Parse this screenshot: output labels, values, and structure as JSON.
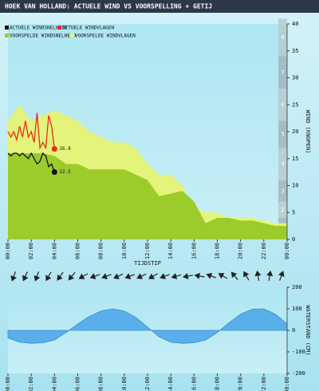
{
  "title": "Hoek van Holland: actuele wind vs voorspelling + getij",
  "chart_data": [
    {
      "type": "wind",
      "xlabel": "tijdstip",
      "ylabel": "wind (knopen)",
      "xlim": [
        0,
        24
      ],
      "xticks": [
        {
          "value": 0,
          "label": "00:00"
        },
        {
          "value": 2,
          "label": "02:00"
        },
        {
          "value": 4,
          "label": "04:00"
        },
        {
          "value": 6,
          "label": "06:00"
        },
        {
          "value": 8,
          "label": "08:00"
        },
        {
          "value": 10,
          "label": "10:00"
        },
        {
          "value": 12,
          "label": "12:00"
        },
        {
          "value": 14,
          "label": "14:00"
        },
        {
          "value": 16,
          "label": "16:00"
        },
        {
          "value": 18,
          "label": "18:00"
        },
        {
          "value": 20,
          "label": "20:00"
        },
        {
          "value": 22,
          "label": "22:00"
        },
        {
          "value": 24,
          "label": "00:00"
        }
      ],
      "ylim": [
        0,
        40
      ],
      "yticks": [
        0,
        5,
        10,
        15,
        20,
        25,
        30,
        35,
        40
      ],
      "beaufort": {
        "labels": [
          1,
          2,
          3,
          4,
          5,
          6,
          7,
          8
        ],
        "bounds": [
          1,
          4,
          7,
          11,
          17,
          22,
          28,
          34,
          41
        ]
      },
      "series": [
        {
          "name": "Voorspelde windvlagen",
          "color": "#e4f47a",
          "style": "area",
          "x": [
            0,
            1,
            2,
            3,
            4,
            5,
            6,
            7,
            8,
            9,
            10,
            11,
            12,
            13,
            14,
            15,
            16,
            17,
            18,
            19,
            20,
            21,
            22,
            23,
            24
          ],
          "values": [
            22,
            25,
            22,
            23,
            24,
            23,
            22,
            20,
            19,
            18,
            18,
            17,
            14,
            12,
            12,
            10,
            6,
            5,
            5,
            4,
            4,
            4,
            3.5,
            3,
            3
          ]
        },
        {
          "name": "Voorspelde windsnelheid",
          "color": "#9ccc2c",
          "style": "area",
          "x": [
            0,
            1,
            2,
            3,
            4,
            5,
            6,
            7,
            8,
            9,
            10,
            11,
            12,
            13,
            14,
            15,
            16,
            17,
            18,
            19,
            20,
            21,
            22,
            23,
            24
          ],
          "values": [
            16,
            16,
            16,
            16,
            15.5,
            14,
            14,
            13,
            13,
            13,
            13,
            12,
            11,
            8,
            8.5,
            9,
            7,
            3,
            4,
            4,
            3.5,
            3.5,
            3,
            2.5,
            2.5
          ]
        },
        {
          "name": "Actuele windvlagen",
          "color": "#ee2a1c",
          "style": "line",
          "x": [
            0,
            0.25,
            0.5,
            0.75,
            1,
            1.25,
            1.5,
            1.75,
            2,
            2.25,
            2.5,
            2.75,
            3,
            3.25,
            3.5,
            3.75,
            4
          ],
          "values": [
            20,
            19,
            20,
            18.5,
            21,
            19,
            22,
            19,
            20,
            18,
            23.5,
            17,
            18,
            17,
            23,
            21,
            16.8
          ]
        },
        {
          "name": "Actuele windsnelheid",
          "color": "#111111",
          "style": "line",
          "x": [
            0,
            0.25,
            0.5,
            0.75,
            1,
            1.25,
            1.5,
            1.75,
            2,
            2.25,
            2.5,
            2.75,
            3,
            3.25,
            3.5,
            3.75,
            4
          ],
          "values": [
            16,
            15.5,
            16,
            16,
            15.5,
            16,
            15.5,
            15,
            16,
            15,
            14,
            14.5,
            16,
            15.5,
            13.5,
            14,
            12.5
          ]
        }
      ]
    },
    {
      "type": "arrows",
      "color": "#222222",
      "xlim": [
        0,
        24
      ],
      "x": [
        0.5,
        1.5,
        2.5,
        3.5,
        4.5,
        5.5,
        6.5,
        7.5,
        8.5,
        9.5,
        10.5,
        11.5,
        12.5,
        13.5,
        14.5,
        15.5,
        16.5,
        17.5,
        18.5,
        19.5,
        20.5,
        21.5,
        22.5,
        23.5
      ],
      "values": [
        200,
        205,
        200,
        210,
        215,
        220,
        240,
        250,
        250,
        245,
        250,
        245,
        240,
        250,
        255,
        260,
        280,
        290,
        300,
        320,
        330,
        350,
        10,
        20
      ]
    },
    {
      "type": "tide",
      "ylabel": "waterstand (cm)",
      "color": "#5aaeea",
      "xlim": [
        0,
        24
      ],
      "xticks": [
        {
          "value": 0,
          "label": "00:00"
        },
        {
          "value": 2,
          "label": "02:00"
        },
        {
          "value": 4,
          "label": "04:00"
        },
        {
          "value": 6,
          "label": "06:00"
        },
        {
          "value": 8,
          "label": "08:00"
        },
        {
          "value": 10,
          "label": "10:00"
        },
        {
          "value": 12,
          "label": "12:00"
        },
        {
          "value": 14,
          "label": "14:00"
        },
        {
          "value": 16,
          "label": "16:00"
        },
        {
          "value": 18,
          "label": "18:00"
        },
        {
          "value": 20,
          "label": "20:00"
        },
        {
          "value": 22,
          "label": "22:00"
        },
        {
          "value": 24,
          "label": "00:00"
        }
      ],
      "ylim": [
        -200,
        200
      ],
      "yticks": [
        200,
        100,
        0,
        -100,
        -200
      ],
      "x": [
        0,
        1,
        2,
        3,
        4,
        5,
        6,
        7,
        8,
        9,
        10,
        11,
        12,
        13,
        14,
        15,
        16,
        17,
        18,
        19,
        20,
        21,
        22,
        23,
        24
      ],
      "values": [
        -35,
        -55,
        -60,
        -58,
        -45,
        -10,
        30,
        65,
        90,
        100,
        90,
        60,
        15,
        -30,
        -55,
        -60,
        -58,
        -45,
        -10,
        35,
        75,
        98,
        100,
        75,
        30
      ]
    }
  ]
}
